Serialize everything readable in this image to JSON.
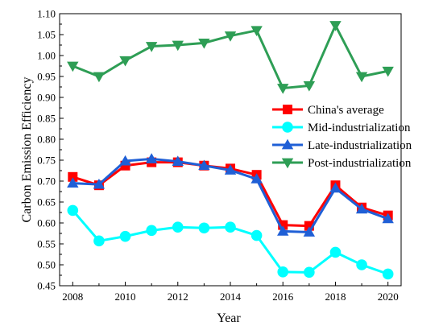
{
  "chart_data": {
    "type": "line",
    "xlabel": "Year",
    "ylabel": "Carbon Emission Efficiency",
    "xlim": [
      2007.5,
      2020.5
    ],
    "ylim": [
      0.45,
      1.1
    ],
    "xticks": [
      2008,
      2010,
      2012,
      2014,
      2016,
      2018,
      2020
    ],
    "yticks": [
      0.45,
      0.5,
      0.55,
      0.6,
      0.65,
      0.7,
      0.75,
      0.8,
      0.85,
      0.9,
      0.95,
      1.0,
      1.05,
      1.1
    ],
    "x": [
      2008,
      2009,
      2010,
      2011,
      2012,
      2013,
      2014,
      2015,
      2016,
      2017,
      2018,
      2019,
      2020
    ],
    "legend_position": "right",
    "grid": false,
    "series": [
      {
        "name": "China's average",
        "color": "#ff0000",
        "marker": "square",
        "values": [
          0.71,
          0.69,
          0.737,
          0.745,
          0.745,
          0.737,
          0.73,
          0.715,
          0.595,
          0.593,
          0.69,
          0.637,
          0.618
        ]
      },
      {
        "name": "Mid-industrialization",
        "color": "#00ffff",
        "marker": "circle",
        "values": [
          0.63,
          0.557,
          0.568,
          0.582,
          0.59,
          0.588,
          0.59,
          0.57,
          0.483,
          0.482,
          0.53,
          0.5,
          0.478
        ]
      },
      {
        "name": "Late-industrialization",
        "color": "#1f5fd6",
        "marker": "triangle-up",
        "values": [
          0.695,
          0.692,
          0.748,
          0.753,
          0.747,
          0.737,
          0.726,
          0.705,
          0.58,
          0.578,
          0.683,
          0.633,
          0.61
        ]
      },
      {
        "name": "Post-industrialization",
        "color": "#2e9e55",
        "marker": "triangle-down",
        "values": [
          0.975,
          0.95,
          0.988,
          1.022,
          1.025,
          1.03,
          1.047,
          1.06,
          0.922,
          0.928,
          1.072,
          0.95,
          0.963
        ]
      }
    ]
  }
}
